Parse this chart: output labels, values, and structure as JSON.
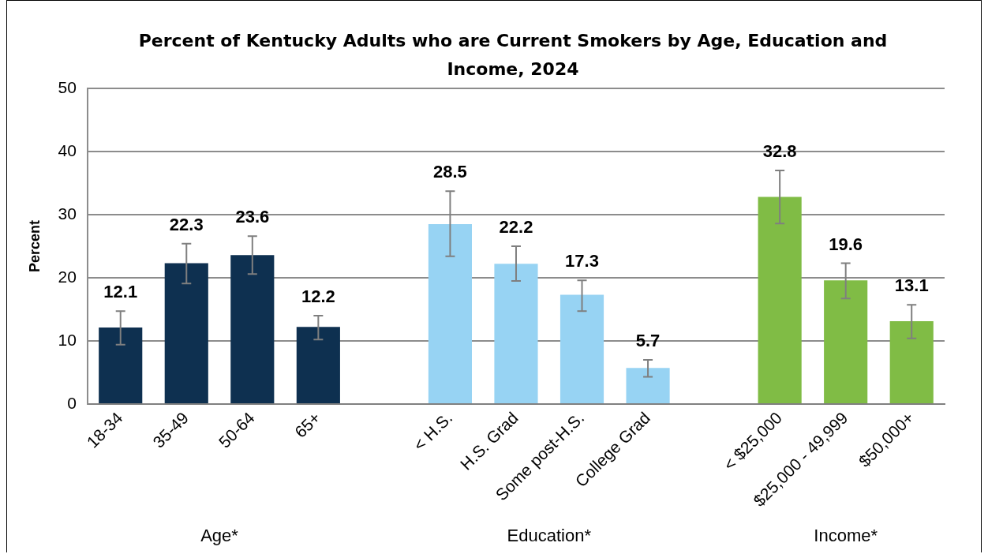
{
  "chart_data": {
    "type": "bar",
    "title": "Percent of Kentucky Adults who are Current Smokers by Age, Education and Income, 2024",
    "ylabel": "Percent",
    "categories": [
      "18-34",
      "35-49",
      "50-64",
      "65+",
      null,
      "< H.S.",
      "H.S. Grad",
      "Some post-H.S.",
      "College Grad",
      null,
      "< $25,000",
      "$25,000 - 49,999",
      "$50,000+"
    ],
    "values": [
      12.1,
      22.3,
      23.6,
      12.2,
      null,
      28.5,
      22.2,
      17.3,
      5.7,
      null,
      32.8,
      19.6,
      13.1
    ],
    "colors": [
      "#0e3050",
      "#0e3050",
      "#0e3050",
      "#0e3050",
      "#97d3f3",
      "#97d3f3",
      "#97d3f3",
      "#97d3f3",
      "#97d3f3",
      "#80bc45",
      "#80bc45",
      "#80bc45",
      "#80bc45"
    ],
    "errors": [
      [
        9.4,
        14.7
      ],
      [
        19.1,
        25.4
      ],
      [
        20.6,
        26.6
      ],
      [
        10.2,
        14.0
      ],
      null,
      [
        23.4,
        33.7
      ],
      [
        19.5,
        25.0
      ],
      [
        14.7,
        19.6
      ],
      [
        4.3,
        7.0
      ],
      null,
      [
        28.6,
        37.0
      ],
      [
        16.7,
        22.3
      ],
      [
        10.4,
        15.7
      ]
    ],
    "data_labels": true,
    "ylim": [
      0,
      50
    ],
    "yticks": [
      0,
      10,
      20,
      30,
      40,
      50
    ],
    "grid": "y",
    "legend": false,
    "annotations": [
      "Age*",
      "Education*",
      "Income*"
    ]
  }
}
